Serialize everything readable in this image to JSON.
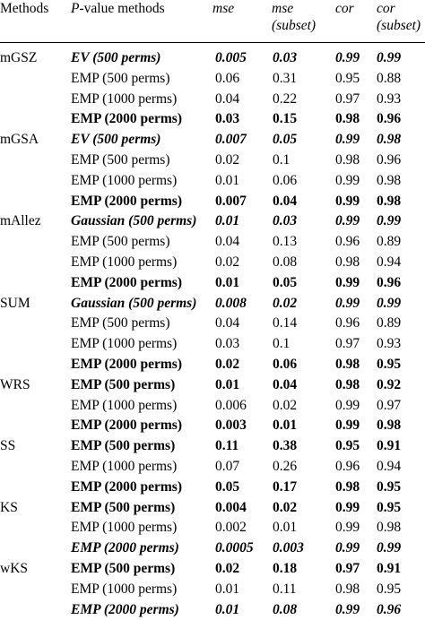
{
  "header": {
    "methods": "Methods",
    "pvalue_italic": "P",
    "pvalue_rest": "-value methods",
    "mse": "mse",
    "mse_subset_1": "mse",
    "mse_subset_2": "(subset)",
    "cor": "cor",
    "cor_subset_1": "cor",
    "cor_subset_2": "(subset)"
  },
  "rows": [
    {
      "group": "mGSZ",
      "method": "EV (500 perms)",
      "mse": "0.005",
      "mse_subset": "0.03",
      "cor": "0.99",
      "cor_subset": "0.99",
      "style": "bi"
    },
    {
      "group": "",
      "method": "EMP (500 perms)",
      "mse": "0.06",
      "mse_subset": "0.31",
      "cor": "0.95",
      "cor_subset": "0.88",
      "style": "n"
    },
    {
      "group": "",
      "method": "EMP (1000 perms)",
      "mse": "0.04",
      "mse_subset": "0.22",
      "cor": "0.97",
      "cor_subset": "0.93",
      "style": "n"
    },
    {
      "group": "",
      "method": "EMP (2000 perms)",
      "mse": "0.03",
      "mse_subset": "0.15",
      "cor": "0.98",
      "cor_subset": "0.96",
      "style": "b"
    },
    {
      "group": "mGSA",
      "method": "EV (500 perms)",
      "mse": "0.007",
      "mse_subset": "0.05",
      "cor": "0.99",
      "cor_subset": "0.98",
      "style": "bi"
    },
    {
      "group": "",
      "method": "EMP (500 perms)",
      "mse": "0.02",
      "mse_subset": "0.1",
      "cor": "0.98",
      "cor_subset": "0.96",
      "style": "n"
    },
    {
      "group": "",
      "method": "EMP (1000 perms)",
      "mse": "0.01",
      "mse_subset": "0.06",
      "cor": "0.99",
      "cor_subset": "0.98",
      "style": "n"
    },
    {
      "group": "",
      "method": "EMP (2000 perms)",
      "mse": "0.007",
      "mse_subset": "0.04",
      "cor": "0.99",
      "cor_subset": "0.98",
      "style": "b"
    },
    {
      "group": "mAllez",
      "method": "Gaussian (500 perms)",
      "mse": "0.01",
      "mse_subset": "0.03",
      "cor": "0.99",
      "cor_subset": "0.99",
      "style": "bi"
    },
    {
      "group": "",
      "method": "EMP (500 perms)",
      "mse": "0.04",
      "mse_subset": "0.13",
      "cor": "0.96",
      "cor_subset": "0.89",
      "style": "n"
    },
    {
      "group": "",
      "method": "EMP (1000 perms)",
      "mse": "0.02",
      "mse_subset": "0.08",
      "cor": "0.98",
      "cor_subset": "0.94",
      "style": "n"
    },
    {
      "group": "",
      "method": "EMP (2000 perms)",
      "mse": "0.01",
      "mse_subset": "0.05",
      "cor": "0.99",
      "cor_subset": "0.96",
      "style": "b"
    },
    {
      "group": "SUM",
      "method": "Gaussian (500 perms)",
      "mse": "0.008",
      "mse_subset": "0.02",
      "cor": "0.99",
      "cor_subset": "0.99",
      "style": "bi"
    },
    {
      "group": "",
      "method": "EMP (500 perms)",
      "mse": "0.04",
      "mse_subset": "0.14",
      "cor": "0.96",
      "cor_subset": "0.89",
      "style": "n"
    },
    {
      "group": "",
      "method": "EMP (1000 perms)",
      "mse": "0.03",
      "mse_subset": "0.1",
      "cor": "0.97",
      "cor_subset": "0.93",
      "style": "n"
    },
    {
      "group": "",
      "method": "EMP (2000 perms)",
      "mse": "0.02",
      "mse_subset": "0.06",
      "cor": "0.98",
      "cor_subset": "0.95",
      "style": "b"
    },
    {
      "group": "WRS",
      "method": "EMP (500 perms)",
      "mse": "0.01",
      "mse_subset": "0.04",
      "cor": "0.98",
      "cor_subset": "0.92",
      "style": "b"
    },
    {
      "group": "",
      "method": "EMP (1000 perms)",
      "mse": "0.006",
      "mse_subset": "0.02",
      "cor": "0.99",
      "cor_subset": "0.97",
      "style": "n"
    },
    {
      "group": "",
      "method": "EMP (2000 perms)",
      "mse": "0.003",
      "mse_subset": "0.01",
      "cor": "0.99",
      "cor_subset": "0.98",
      "style": "b"
    },
    {
      "group": "SS",
      "method": "EMP (500 perms)",
      "mse": "0.11",
      "mse_subset": "0.38",
      "cor": "0.95",
      "cor_subset": "0.91",
      "style": "b"
    },
    {
      "group": "",
      "method": "EMP (1000 perms)",
      "mse": "0.07",
      "mse_subset": "0.26",
      "cor": "0.96",
      "cor_subset": "0.94",
      "style": "n"
    },
    {
      "group": "",
      "method": "EMP (2000 perms)",
      "mse": "0.05",
      "mse_subset": "0.17",
      "cor": "0.98",
      "cor_subset": "0.95",
      "style": "b"
    },
    {
      "group": "KS",
      "method": "EMP (500 perms)",
      "mse": "0.004",
      "mse_subset": "0.02",
      "cor": "0.99",
      "cor_subset": "0.95",
      "style": "b"
    },
    {
      "group": "",
      "method": "EMP (1000 perms)",
      "mse": "0.002",
      "mse_subset": "0.01",
      "cor": "0.99",
      "cor_subset": "0.98",
      "style": "n"
    },
    {
      "group": "",
      "method": "EMP (2000 perms)",
      "mse": "0.0005",
      "mse_subset": "0.003",
      "cor": "0.99",
      "cor_subset": "0.99",
      "style": "bi"
    },
    {
      "group": "wKS",
      "method": "EMP (500 perms)",
      "mse": "0.02",
      "mse_subset": "0.18",
      "cor": "0.97",
      "cor_subset": "0.91",
      "style": "b"
    },
    {
      "group": "",
      "method": "EMP (1000 perms)",
      "mse": "0.01",
      "mse_subset": "0.11",
      "cor": "0.98",
      "cor_subset": "0.95",
      "style": "n"
    },
    {
      "group": "",
      "method": "EMP (2000 perms)",
      "mse": "0.01",
      "mse_subset": "0.08",
      "cor": "0.99",
      "cor_subset": "0.96",
      "style": "bi"
    }
  ]
}
